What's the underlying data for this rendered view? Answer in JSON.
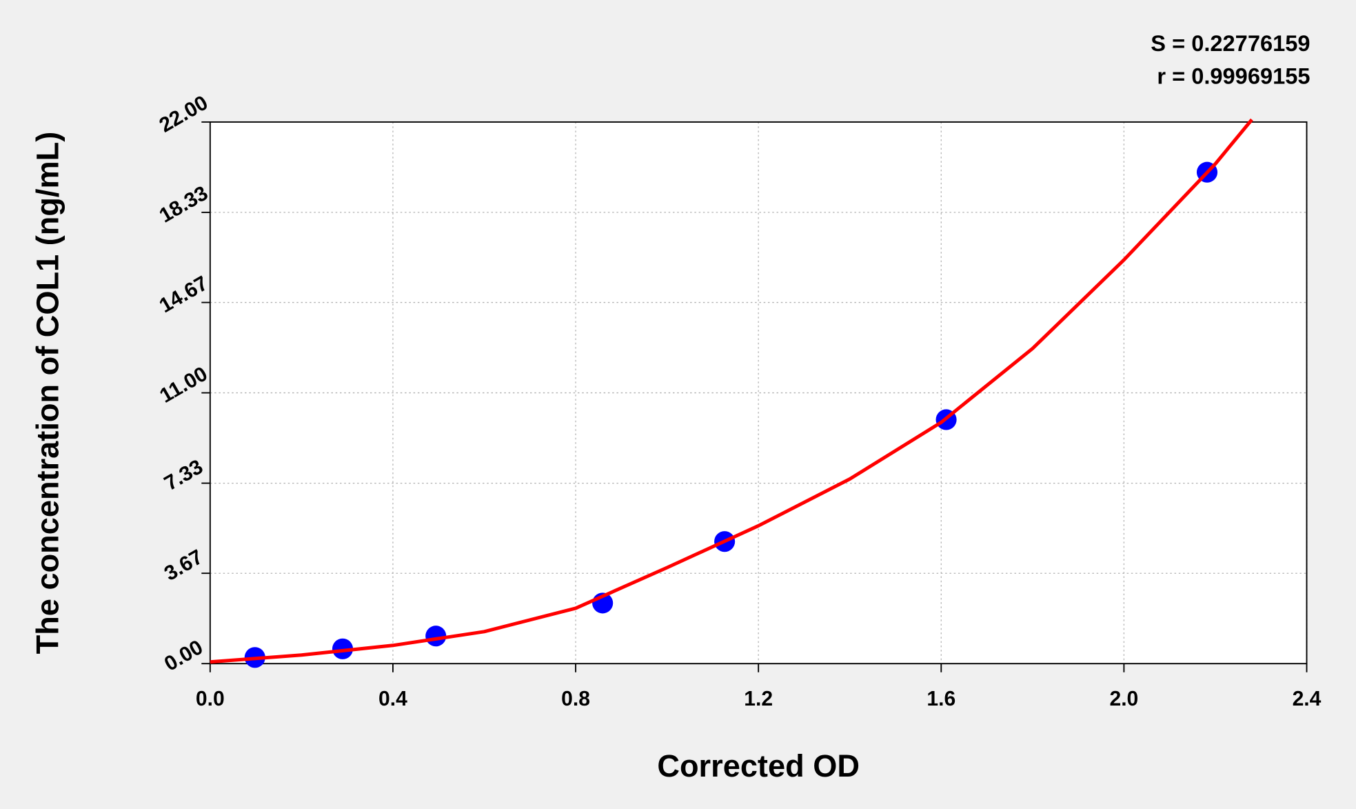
{
  "chart_data": {
    "type": "scatter",
    "xlabel": "Corrected OD",
    "ylabel": "The concentration of COL1 (ng/mL)",
    "annotations": [
      "S = 0.22776159",
      "r = 0.99969155"
    ],
    "xlim": [
      0,
      2.4
    ],
    "ylim": [
      0,
      22
    ],
    "xticks": [
      {
        "value": 0,
        "label": "0.0"
      },
      0.4,
      0.8,
      1.2,
      1.6,
      {
        "value": 2,
        "label": "2.0"
      },
      2.4
    ],
    "yticks": [
      {
        "value": 0,
        "label": "0.00"
      },
      3.67,
      7.33,
      {
        "value": 11,
        "label": "11.00"
      },
      14.67,
      18.33,
      {
        "value": 22,
        "label": "22.00"
      }
    ],
    "grid": true,
    "series": [
      {
        "mode": "markers",
        "color": "#0000ff",
        "x": [
          0.098,
          0.29,
          0.494,
          0.859,
          1.126,
          1.611,
          2.182
        ],
        "values": [
          0.25,
          0.6,
          1.12,
          2.46,
          4.96,
          9.91,
          19.96
        ]
      },
      {
        "mode": "line",
        "color": "#ff0000",
        "x": [
          0,
          0.2,
          0.4,
          0.6,
          0.8,
          1.0,
          1.2,
          1.4,
          1.6,
          1.8,
          2.0,
          2.2,
          2.28
        ],
        "values": [
          0.07,
          0.35,
          0.74,
          1.3,
          2.25,
          3.9,
          5.6,
          7.5,
          9.8,
          12.8,
          16.4,
          20.3,
          22.1
        ]
      }
    ]
  }
}
